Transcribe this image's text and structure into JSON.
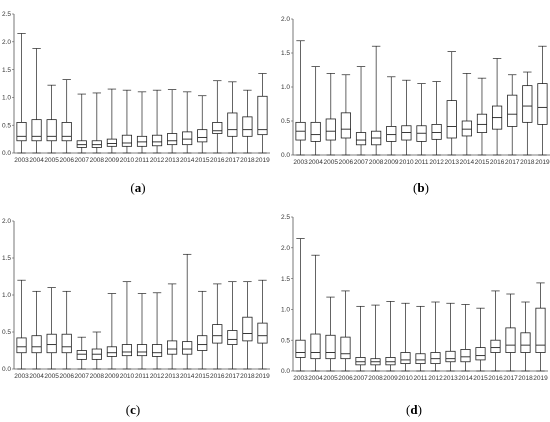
{
  "figure": {
    "panel_labels": [
      "(a)",
      "(b)",
      "(c)",
      "(d)"
    ]
  },
  "chart_data": [
    {
      "type": "boxplot",
      "panel": "(a)",
      "categories": [
        "2003",
        "2004",
        "2005",
        "2006",
        "2007",
        "2008",
        "2009",
        "2010",
        "2011",
        "2012",
        "2013",
        "2014",
        "2015",
        "2016",
        "2017",
        "2018",
        "2019"
      ],
      "ylim": [
        0,
        2.5
      ],
      "yticks": [
        "0.0",
        "0.5",
        "1.0",
        "1.5",
        "2.0",
        "2.5"
      ],
      "grid": false,
      "boxes": [
        {
          "min": 0.0,
          "q1": 0.22,
          "median": 0.3,
          "q3": 0.55,
          "max": 2.15
        },
        {
          "min": 0.0,
          "q1": 0.22,
          "median": 0.3,
          "q3": 0.6,
          "max": 1.88
        },
        {
          "min": 0.0,
          "q1": 0.22,
          "median": 0.3,
          "q3": 0.6,
          "max": 1.22
        },
        {
          "min": 0.0,
          "q1": 0.22,
          "median": 0.3,
          "q3": 0.55,
          "max": 1.32
        },
        {
          "min": 0.0,
          "q1": 0.1,
          "median": 0.15,
          "q3": 0.22,
          "max": 1.06
        },
        {
          "min": 0.0,
          "q1": 0.1,
          "median": 0.15,
          "q3": 0.22,
          "max": 1.08
        },
        {
          "min": 0.0,
          "q1": 0.12,
          "median": 0.17,
          "q3": 0.25,
          "max": 1.15
        },
        {
          "min": 0.0,
          "q1": 0.12,
          "median": 0.18,
          "q3": 0.32,
          "max": 1.13
        },
        {
          "min": 0.0,
          "q1": 0.12,
          "median": 0.2,
          "q3": 0.3,
          "max": 1.1
        },
        {
          "min": 0.0,
          "q1": 0.13,
          "median": 0.2,
          "q3": 0.32,
          "max": 1.13
        },
        {
          "min": 0.0,
          "q1": 0.15,
          "median": 0.22,
          "q3": 0.35,
          "max": 1.14
        },
        {
          "min": 0.0,
          "q1": 0.15,
          "median": 0.25,
          "q3": 0.38,
          "max": 1.1
        },
        {
          "min": 0.0,
          "q1": 0.2,
          "median": 0.28,
          "q3": 0.42,
          "max": 1.03
        },
        {
          "min": 0.0,
          "q1": 0.35,
          "median": 0.4,
          "q3": 0.55,
          "max": 1.3
        },
        {
          "min": 0.0,
          "q1": 0.3,
          "median": 0.42,
          "q3": 0.72,
          "max": 1.28
        },
        {
          "min": 0.0,
          "q1": 0.3,
          "median": 0.42,
          "q3": 0.65,
          "max": 1.13
        },
        {
          "min": 0.0,
          "q1": 0.33,
          "median": 0.42,
          "q3": 1.02,
          "max": 1.43
        }
      ]
    },
    {
      "type": "boxplot",
      "panel": "(b)",
      "categories": [
        "2003",
        "2004",
        "2005",
        "2006",
        "2007",
        "2008",
        "2009",
        "2010",
        "2011",
        "2012",
        "2013",
        "2014",
        "2015",
        "2016",
        "2017",
        "2018",
        "2019"
      ],
      "ylim": [
        0,
        2.0
      ],
      "yticks": [
        "0.0",
        "0.5",
        "1.0",
        "1.5",
        "2.0"
      ],
      "grid": false,
      "boxes": [
        {
          "min": 0.0,
          "q1": 0.22,
          "median": 0.35,
          "q3": 0.48,
          "max": 1.68
        },
        {
          "min": 0.0,
          "q1": 0.2,
          "median": 0.3,
          "q3": 0.48,
          "max": 1.3
        },
        {
          "min": 0.0,
          "q1": 0.22,
          "median": 0.35,
          "q3": 0.53,
          "max": 1.2
        },
        {
          "min": 0.0,
          "q1": 0.25,
          "median": 0.38,
          "q3": 0.62,
          "max": 1.18
        },
        {
          "min": 0.0,
          "q1": 0.15,
          "median": 0.22,
          "q3": 0.33,
          "max": 1.3
        },
        {
          "min": 0.0,
          "q1": 0.15,
          "median": 0.25,
          "q3": 0.35,
          "max": 1.6
        },
        {
          "min": 0.0,
          "q1": 0.2,
          "median": 0.3,
          "q3": 0.42,
          "max": 1.15
        },
        {
          "min": 0.0,
          "q1": 0.22,
          "median": 0.33,
          "q3": 0.43,
          "max": 1.1
        },
        {
          "min": 0.0,
          "q1": 0.2,
          "median": 0.32,
          "q3": 0.43,
          "max": 1.05
        },
        {
          "min": 0.0,
          "q1": 0.23,
          "median": 0.33,
          "q3": 0.45,
          "max": 1.08
        },
        {
          "min": 0.0,
          "q1": 0.25,
          "median": 0.42,
          "q3": 0.8,
          "max": 1.52
        },
        {
          "min": 0.0,
          "q1": 0.28,
          "median": 0.38,
          "q3": 0.5,
          "max": 1.2
        },
        {
          "min": 0.0,
          "q1": 0.33,
          "median": 0.45,
          "q3": 0.6,
          "max": 1.13
        },
        {
          "min": 0.0,
          "q1": 0.38,
          "median": 0.55,
          "q3": 0.72,
          "max": 1.42
        },
        {
          "min": 0.0,
          "q1": 0.42,
          "median": 0.6,
          "q3": 0.88,
          "max": 1.18
        },
        {
          "min": 0.0,
          "q1": 0.48,
          "median": 0.72,
          "q3": 1.02,
          "max": 1.22
        },
        {
          "min": 0.0,
          "q1": 0.45,
          "median": 0.7,
          "q3": 1.05,
          "max": 1.6
        }
      ]
    },
    {
      "type": "boxplot",
      "panel": "(c)",
      "categories": [
        "2003",
        "2004",
        "2005",
        "2006",
        "2007",
        "2008",
        "2009",
        "2010",
        "2011",
        "2012",
        "2013",
        "2014",
        "2015",
        "2016",
        "2017",
        "2018",
        "2019"
      ],
      "ylim": [
        0,
        2.0
      ],
      "yticks": [
        "0.0",
        "0.5",
        "1.0",
        "1.5",
        "2.0"
      ],
      "grid": false,
      "boxes": [
        {
          "min": 0.0,
          "q1": 0.22,
          "median": 0.3,
          "q3": 0.42,
          "max": 1.2
        },
        {
          "min": 0.0,
          "q1": 0.22,
          "median": 0.3,
          "q3": 0.45,
          "max": 1.05
        },
        {
          "min": 0.0,
          "q1": 0.22,
          "median": 0.33,
          "q3": 0.47,
          "max": 1.1
        },
        {
          "min": 0.0,
          "q1": 0.22,
          "median": 0.3,
          "q3": 0.47,
          "max": 1.05
        },
        {
          "min": 0.0,
          "q1": 0.13,
          "median": 0.2,
          "q3": 0.25,
          "max": 0.43
        },
        {
          "min": 0.0,
          "q1": 0.13,
          "median": 0.2,
          "q3": 0.27,
          "max": 0.5
        },
        {
          "min": 0.0,
          "q1": 0.17,
          "median": 0.22,
          "q3": 0.3,
          "max": 1.02
        },
        {
          "min": 0.0,
          "q1": 0.18,
          "median": 0.23,
          "q3": 0.33,
          "max": 1.18
        },
        {
          "min": 0.0,
          "q1": 0.18,
          "median": 0.23,
          "q3": 0.33,
          "max": 1.02
        },
        {
          "min": 0.0,
          "q1": 0.17,
          "median": 0.22,
          "q3": 0.33,
          "max": 1.03
        },
        {
          "min": 0.0,
          "q1": 0.2,
          "median": 0.27,
          "q3": 0.38,
          "max": 1.15
        },
        {
          "min": 0.0,
          "q1": 0.2,
          "median": 0.27,
          "q3": 0.37,
          "max": 1.55
        },
        {
          "min": 0.0,
          "q1": 0.25,
          "median": 0.33,
          "q3": 0.45,
          "max": 1.05
        },
        {
          "min": 0.0,
          "q1": 0.35,
          "median": 0.45,
          "q3": 0.6,
          "max": 1.15
        },
        {
          "min": 0.0,
          "q1": 0.33,
          "median": 0.4,
          "q3": 0.52,
          "max": 1.18
        },
        {
          "min": 0.0,
          "q1": 0.38,
          "median": 0.48,
          "q3": 0.7,
          "max": 1.18
        },
        {
          "min": 0.0,
          "q1": 0.35,
          "median": 0.45,
          "q3": 0.62,
          "max": 1.2
        }
      ]
    },
    {
      "type": "boxplot",
      "panel": "(d)",
      "categories": [
        "2003",
        "2004",
        "2005",
        "2006",
        "2007",
        "2008",
        "2009",
        "2010",
        "2011",
        "2012",
        "2013",
        "2014",
        "2015",
        "2016",
        "2017",
        "2018",
        "2019"
      ],
      "ylim": [
        0,
        2.5
      ],
      "yticks": [
        "0.0",
        "0.5",
        "1.0",
        "1.5",
        "2.0",
        "2.5"
      ],
      "grid": false,
      "boxes": [
        {
          "min": 0.0,
          "q1": 0.22,
          "median": 0.3,
          "q3": 0.5,
          "max": 2.15
        },
        {
          "min": 0.0,
          "q1": 0.2,
          "median": 0.3,
          "q3": 0.6,
          "max": 1.88
        },
        {
          "min": 0.0,
          "q1": 0.2,
          "median": 0.3,
          "q3": 0.58,
          "max": 1.2
        },
        {
          "min": 0.0,
          "q1": 0.2,
          "median": 0.28,
          "q3": 0.55,
          "max": 1.3
        },
        {
          "min": 0.0,
          "q1": 0.1,
          "median": 0.15,
          "q3": 0.22,
          "max": 1.05
        },
        {
          "min": 0.0,
          "q1": 0.1,
          "median": 0.15,
          "q3": 0.2,
          "max": 1.07
        },
        {
          "min": 0.0,
          "q1": 0.1,
          "median": 0.15,
          "q3": 0.22,
          "max": 1.13
        },
        {
          "min": 0.0,
          "q1": 0.12,
          "median": 0.18,
          "q3": 0.3,
          "max": 1.1
        },
        {
          "min": 0.0,
          "q1": 0.12,
          "median": 0.18,
          "q3": 0.28,
          "max": 1.05
        },
        {
          "min": 0.0,
          "q1": 0.12,
          "median": 0.2,
          "q3": 0.3,
          "max": 1.12
        },
        {
          "min": 0.0,
          "q1": 0.15,
          "median": 0.2,
          "q3": 0.32,
          "max": 1.1
        },
        {
          "min": 0.0,
          "q1": 0.15,
          "median": 0.23,
          "q3": 0.35,
          "max": 1.08
        },
        {
          "min": 0.0,
          "q1": 0.18,
          "median": 0.25,
          "q3": 0.38,
          "max": 1.02
        },
        {
          "min": 0.0,
          "q1": 0.3,
          "median": 0.38,
          "q3": 0.5,
          "max": 1.3
        },
        {
          "min": 0.0,
          "q1": 0.3,
          "median": 0.42,
          "q3": 0.7,
          "max": 1.25
        },
        {
          "min": 0.0,
          "q1": 0.3,
          "median": 0.42,
          "q3": 0.62,
          "max": 1.12
        },
        {
          "min": 0.0,
          "q1": 0.3,
          "median": 0.42,
          "q3": 1.02,
          "max": 1.43
        }
      ]
    }
  ]
}
